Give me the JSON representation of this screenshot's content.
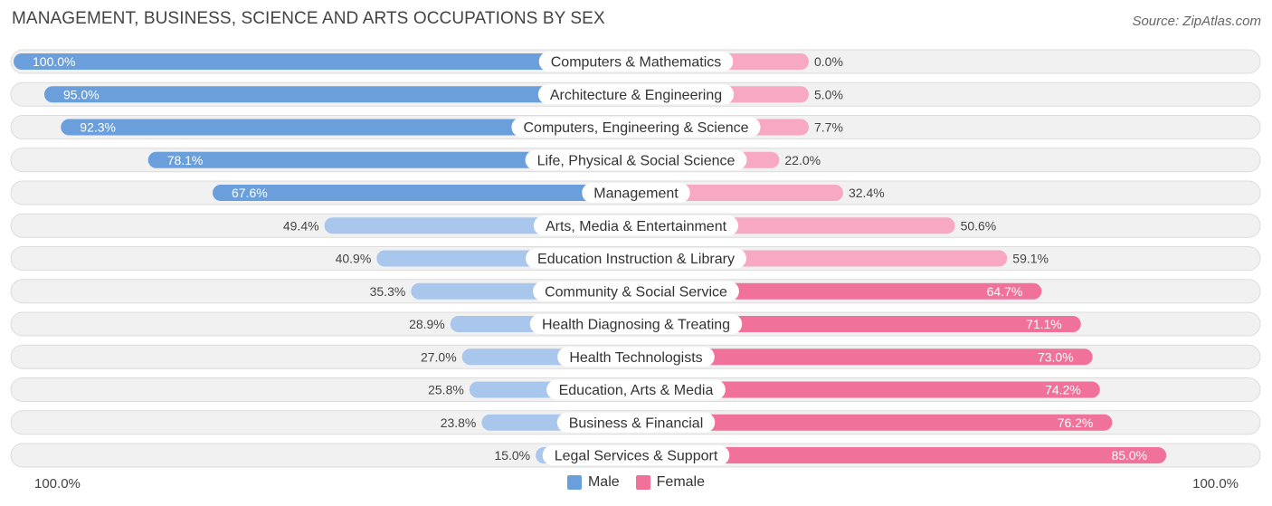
{
  "title": "MANAGEMENT, BUSINESS, SCIENCE AND ARTS OCCUPATIONS BY SEX",
  "source": "Source: ZipAtlas.com",
  "legend": {
    "male_label": "Male",
    "female_label": "Female"
  },
  "axis": {
    "left_label": "100.0%",
    "right_label": "100.0%"
  },
  "colors": {
    "male_strong": "#6a9fdc",
    "male_light": "#a9c7ec",
    "female_strong": "#f0719a",
    "female_light": "#f7a9c3",
    "row_bg": "#f1f1f1",
    "row_border": "#dcdcdc"
  },
  "chart_data": {
    "type": "bar",
    "orientation": "horizontal-diverging",
    "title": "MANAGEMENT, BUSINESS, SCIENCE AND ARTS OCCUPATIONS BY SEX",
    "xlim": [
      -100,
      100
    ],
    "categories": [
      "Computers & Mathematics",
      "Architecture & Engineering",
      "Computers, Engineering & Science",
      "Life, Physical & Social Science",
      "Management",
      "Arts, Media & Entertainment",
      "Education Instruction & Library",
      "Community & Social Service",
      "Health Diagnosing & Treating",
      "Health Technologists",
      "Education, Arts & Media",
      "Business & Financial",
      "Legal Services & Support"
    ],
    "series": [
      {
        "name": "Male",
        "values": [
          100.0,
          95.0,
          92.3,
          78.1,
          67.6,
          49.4,
          40.9,
          35.3,
          28.9,
          27.0,
          25.8,
          23.8,
          15.0
        ],
        "labels": [
          "100.0%",
          "95.0%",
          "92.3%",
          "78.1%",
          "67.6%",
          "49.4%",
          "40.9%",
          "35.3%",
          "28.9%",
          "27.0%",
          "25.8%",
          "23.8%",
          "15.0%"
        ]
      },
      {
        "name": "Female",
        "values": [
          0.0,
          5.0,
          7.7,
          22.0,
          32.4,
          50.6,
          59.1,
          64.7,
          71.1,
          73.0,
          74.2,
          76.2,
          85.0
        ],
        "labels": [
          "0.0%",
          "5.0%",
          "7.7%",
          "22.0%",
          "32.4%",
          "50.6%",
          "59.1%",
          "64.7%",
          "71.1%",
          "73.0%",
          "74.2%",
          "76.2%",
          "85.0%"
        ]
      }
    ],
    "legend_position": "bottom-center",
    "grid": false
  }
}
